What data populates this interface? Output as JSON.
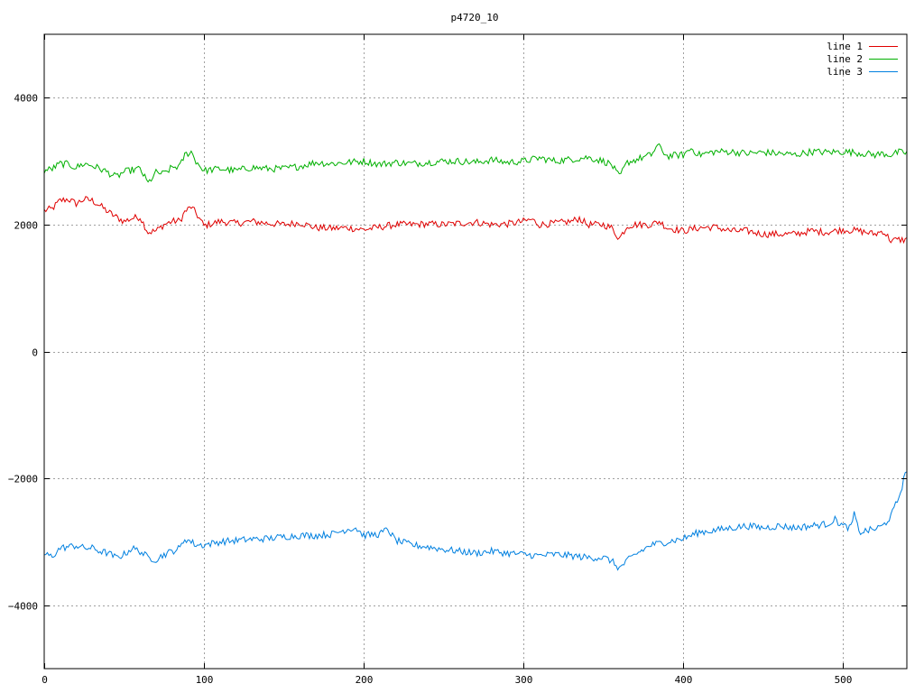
{
  "chart_data": {
    "type": "line",
    "title": "p4720_10",
    "xlabel": "",
    "ylabel": "",
    "xlim": [
      0,
      540
    ],
    "ylim": [
      -5000,
      5000
    ],
    "xticks": [
      0,
      100,
      200,
      300,
      400,
      500
    ],
    "yticks": [
      -4000,
      -2000,
      0,
      2000,
      4000
    ],
    "grid": true,
    "legend_position": "top-right",
    "series": [
      {
        "name": "line 1",
        "color": "#e00000",
        "points": [
          [
            0,
            2220
          ],
          [
            5,
            2250
          ],
          [
            10,
            2380
          ],
          [
            15,
            2400
          ],
          [
            20,
            2330
          ],
          [
            25,
            2400
          ],
          [
            30,
            2380
          ],
          [
            35,
            2300
          ],
          [
            40,
            2200
          ],
          [
            45,
            2120
          ],
          [
            50,
            2050
          ],
          [
            55,
            2100
          ],
          [
            60,
            2120
          ],
          [
            65,
            1880
          ],
          [
            70,
            1900
          ],
          [
            75,
            2000
          ],
          [
            80,
            2050
          ],
          [
            85,
            2060
          ],
          [
            88,
            2200
          ],
          [
            92,
            2280
          ],
          [
            95,
            2180
          ],
          [
            100,
            1980
          ],
          [
            110,
            2050
          ],
          [
            120,
            2020
          ],
          [
            130,
            2050
          ],
          [
            140,
            2020
          ],
          [
            150,
            2000
          ],
          [
            160,
            2030
          ],
          [
            170,
            1950
          ],
          [
            180,
            1940
          ],
          [
            190,
            1950
          ],
          [
            200,
            1920
          ],
          [
            210,
            1960
          ],
          [
            220,
            2000
          ],
          [
            230,
            2000
          ],
          [
            240,
            2010
          ],
          [
            250,
            2000
          ],
          [
            260,
            2020
          ],
          [
            270,
            2040
          ],
          [
            280,
            2000
          ],
          [
            290,
            2010
          ],
          [
            300,
            2050
          ],
          [
            305,
            2080
          ],
          [
            310,
            2000
          ],
          [
            320,
            2020
          ],
          [
            330,
            2050
          ],
          [
            335,
            2100
          ],
          [
            340,
            2000
          ],
          [
            350,
            2000
          ],
          [
            355,
            1950
          ],
          [
            360,
            1780
          ],
          [
            365,
            1980
          ],
          [
            370,
            2000
          ],
          [
            380,
            2000
          ],
          [
            385,
            2050
          ],
          [
            390,
            1950
          ],
          [
            400,
            1900
          ],
          [
            410,
            1950
          ],
          [
            420,
            1960
          ],
          [
            430,
            1900
          ],
          [
            440,
            1900
          ],
          [
            450,
            1850
          ],
          [
            460,
            1850
          ],
          [
            470,
            1850
          ],
          [
            480,
            1900
          ],
          [
            490,
            1880
          ],
          [
            500,
            1920
          ],
          [
            510,
            1900
          ],
          [
            520,
            1850
          ],
          [
            525,
            1900
          ],
          [
            530,
            1750
          ],
          [
            535,
            1760
          ],
          [
            540,
            1760
          ]
        ]
      },
      {
        "name": "line 2",
        "color": "#00b000",
        "points": [
          [
            0,
            2850
          ],
          [
            5,
            2880
          ],
          [
            10,
            2960
          ],
          [
            15,
            2950
          ],
          [
            20,
            2900
          ],
          [
            25,
            2960
          ],
          [
            30,
            2930
          ],
          [
            35,
            2880
          ],
          [
            40,
            2820
          ],
          [
            45,
            2750
          ],
          [
            50,
            2830
          ],
          [
            55,
            2860
          ],
          [
            60,
            2880
          ],
          [
            65,
            2650
          ],
          [
            70,
            2820
          ],
          [
            75,
            2800
          ],
          [
            80,
            2900
          ],
          [
            85,
            2920
          ],
          [
            88,
            3100
          ],
          [
            92,
            3150
          ],
          [
            95,
            3000
          ],
          [
            100,
            2850
          ],
          [
            110,
            2880
          ],
          [
            120,
            2850
          ],
          [
            130,
            2900
          ],
          [
            140,
            2880
          ],
          [
            150,
            2880
          ],
          [
            160,
            2920
          ],
          [
            170,
            2980
          ],
          [
            180,
            2960
          ],
          [
            190,
            2980
          ],
          [
            200,
            3000
          ],
          [
            210,
            2950
          ],
          [
            220,
            2980
          ],
          [
            230,
            2960
          ],
          [
            240,
            2980
          ],
          [
            250,
            3000
          ],
          [
            260,
            3000
          ],
          [
            270,
            2980
          ],
          [
            280,
            3020
          ],
          [
            290,
            2980
          ],
          [
            300,
            3000
          ],
          [
            310,
            3050
          ],
          [
            320,
            3000
          ],
          [
            330,
            3030
          ],
          [
            340,
            3060
          ],
          [
            350,
            3000
          ],
          [
            355,
            2950
          ],
          [
            360,
            2750
          ],
          [
            365,
            2980
          ],
          [
            370,
            3020
          ],
          [
            380,
            3100
          ],
          [
            384,
            3250
          ],
          [
            390,
            3080
          ],
          [
            400,
            3100
          ],
          [
            405,
            3200
          ],
          [
            410,
            3100
          ],
          [
            420,
            3150
          ],
          [
            430,
            3150
          ],
          [
            440,
            3120
          ],
          [
            450,
            3140
          ],
          [
            460,
            3120
          ],
          [
            470,
            3100
          ],
          [
            480,
            3150
          ],
          [
            490,
            3140
          ],
          [
            500,
            3150
          ],
          [
            510,
            3130
          ],
          [
            520,
            3100
          ],
          [
            525,
            3120
          ],
          [
            530,
            3100
          ],
          [
            535,
            3140
          ],
          [
            540,
            3130
          ]
        ]
      },
      {
        "name": "line 3",
        "color": "#0080e0",
        "points": [
          [
            0,
            -3200
          ],
          [
            5,
            -3230
          ],
          [
            10,
            -3100
          ],
          [
            15,
            -3080
          ],
          [
            20,
            -3060
          ],
          [
            25,
            -3100
          ],
          [
            30,
            -3100
          ],
          [
            35,
            -3150
          ],
          [
            40,
            -3180
          ],
          [
            45,
            -3250
          ],
          [
            50,
            -3200
          ],
          [
            55,
            -3100
          ],
          [
            60,
            -3150
          ],
          [
            65,
            -3250
          ],
          [
            70,
            -3280
          ],
          [
            75,
            -3200
          ],
          [
            80,
            -3150
          ],
          [
            85,
            -3100
          ],
          [
            88,
            -2950
          ],
          [
            92,
            -3000
          ],
          [
            95,
            -3050
          ],
          [
            100,
            -3050
          ],
          [
            110,
            -3000
          ],
          [
            120,
            -2980
          ],
          [
            130,
            -2960
          ],
          [
            140,
            -2950
          ],
          [
            150,
            -2920
          ],
          [
            160,
            -2900
          ],
          [
            170,
            -2900
          ],
          [
            180,
            -2880
          ],
          [
            190,
            -2800
          ],
          [
            195,
            -2780
          ],
          [
            200,
            -2900
          ],
          [
            210,
            -2880
          ],
          [
            215,
            -2800
          ],
          [
            220,
            -2980
          ],
          [
            230,
            -3050
          ],
          [
            240,
            -3080
          ],
          [
            250,
            -3120
          ],
          [
            260,
            -3150
          ],
          [
            270,
            -3180
          ],
          [
            280,
            -3150
          ],
          [
            290,
            -3180
          ],
          [
            300,
            -3200
          ],
          [
            310,
            -3220
          ],
          [
            320,
            -3200
          ],
          [
            330,
            -3220
          ],
          [
            340,
            -3250
          ],
          [
            350,
            -3250
          ],
          [
            355,
            -3300
          ],
          [
            360,
            -3420
          ],
          [
            365,
            -3300
          ],
          [
            370,
            -3200
          ],
          [
            380,
            -3050
          ],
          [
            390,
            -3000
          ],
          [
            400,
            -2950
          ],
          [
            405,
            -2900
          ],
          [
            410,
            -2850
          ],
          [
            420,
            -2820
          ],
          [
            430,
            -2780
          ],
          [
            440,
            -2750
          ],
          [
            450,
            -2780
          ],
          [
            460,
            -2750
          ],
          [
            470,
            -2780
          ],
          [
            480,
            -2750
          ],
          [
            490,
            -2720
          ],
          [
            495,
            -2650
          ],
          [
            500,
            -2750
          ],
          [
            505,
            -2780
          ],
          [
            507,
            -2550
          ],
          [
            510,
            -2850
          ],
          [
            520,
            -2800
          ],
          [
            525,
            -2750
          ],
          [
            530,
            -2600
          ],
          [
            535,
            -2300
          ],
          [
            540,
            -1850
          ]
        ]
      }
    ]
  }
}
